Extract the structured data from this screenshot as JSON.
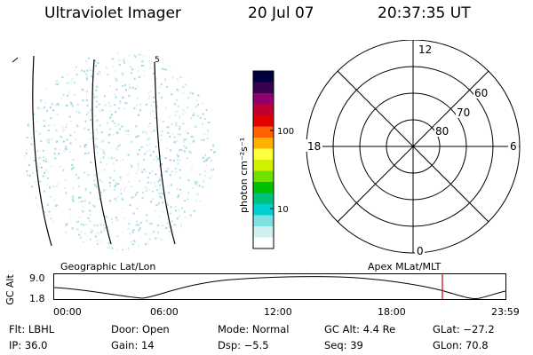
{
  "header": {
    "title": "Ultraviolet Imager",
    "date": "20 Jul 07",
    "time": "20:37:35 UT"
  },
  "colorbar": {
    "label": "photon cm⁻²s⁻¹",
    "ticks": [
      "100",
      "10"
    ],
    "colors": [
      "#000040",
      "#3a0050",
      "#900070",
      "#c00030",
      "#e00000",
      "#ff6000",
      "#ffb000",
      "#ffff40",
      "#d0f000",
      "#70e000",
      "#00c000",
      "#00c080",
      "#00d0d0",
      "#80e0e0",
      "#d0f0f0",
      "#ffffff"
    ]
  },
  "polar_plot": {
    "mlt_labels": {
      "top": "12",
      "left": "18",
      "right": "6",
      "bottom": "0"
    },
    "lat_labels": [
      "60",
      "70",
      "80"
    ]
  },
  "timeline": {
    "left_label": "Geographic Lat/Lon",
    "right_label": "Apex MLat/MLT",
    "axis_label": "GC Alt",
    "y_ticks": [
      "9.0",
      "1.8"
    ],
    "x_ticks": [
      "00:00",
      "06:00",
      "12:00",
      "18:00",
      "23:59"
    ],
    "marker_color": "#d00000"
  },
  "info": {
    "flt": "Flt: LBHL",
    "ip": "IP: 36.0",
    "door": "Door: Open",
    "gain": "Gain: 14",
    "mode": "Mode: Normal",
    "dsp": "Dsp:  −5.5",
    "gcalt": "GC Alt: 4.4 Re",
    "seq": "Seq: 39",
    "glat": "GLat: −27.2",
    "glon": "GLon:  70.8"
  },
  "image_panel": {
    "edge_label": "5"
  }
}
